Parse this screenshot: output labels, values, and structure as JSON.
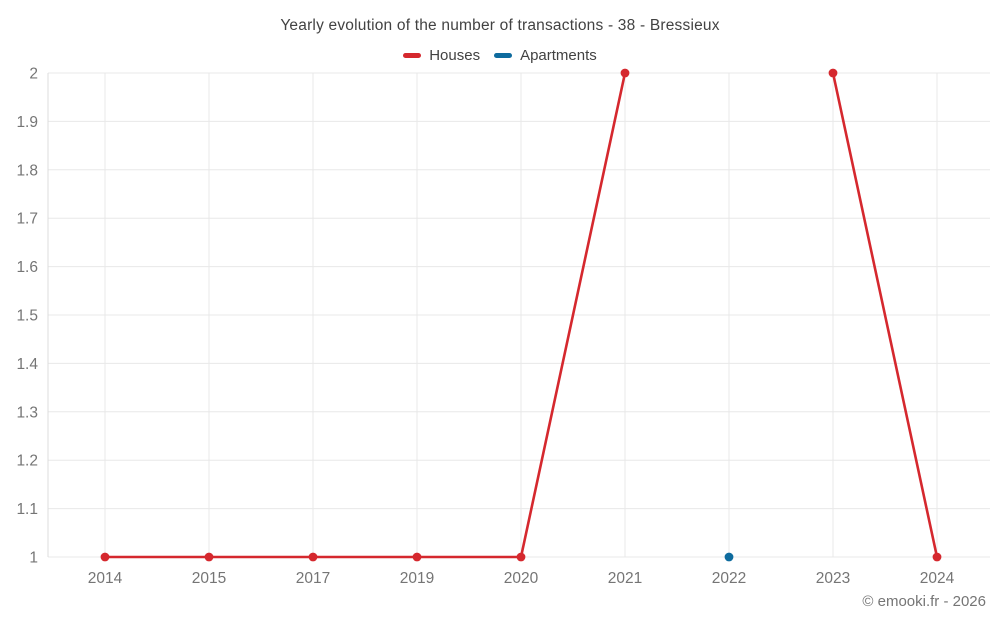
{
  "chart": {
    "title": "Yearly evolution of the number of transactions - 38 - Bressieux",
    "copyright": "© emooki.fr - 2026"
  },
  "chart_data": {
    "type": "line",
    "title": "Yearly evolution of the number of transactions - 38 - Bressieux",
    "categories": [
      "2014",
      "2015",
      "2017",
      "2019",
      "2020",
      "2021",
      "2022",
      "2023",
      "2024"
    ],
    "series": [
      {
        "name": "Houses",
        "color": "#d5282e",
        "values": [
          1,
          1,
          1,
          1,
          1,
          2,
          null,
          2,
          1
        ]
      },
      {
        "name": "Apartments",
        "color": "#0e6b9e",
        "values": [
          null,
          null,
          null,
          null,
          null,
          null,
          1,
          null,
          null
        ]
      }
    ],
    "ylim": [
      1,
      2
    ],
    "ytick_step": 0.1,
    "ytick_labels": [
      "1",
      "1.1",
      "1.2",
      "1.3",
      "1.4",
      "1.5",
      "1.6",
      "1.7",
      "1.8",
      "1.9",
      "2"
    ],
    "grid": true,
    "legend_position": "top",
    "colors": {
      "grid": "#e8e8e8",
      "axis": "#dcdcdc",
      "tick_label": "#757575",
      "title": "#424242"
    }
  }
}
